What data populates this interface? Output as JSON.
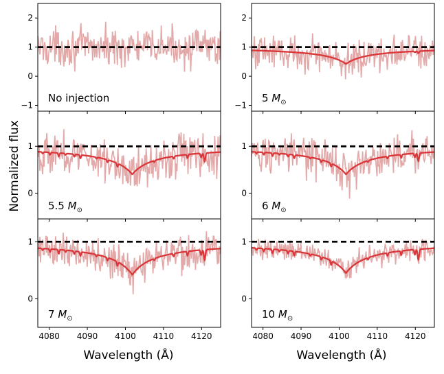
{
  "chart_data": {
    "type": "line",
    "ylabel": "Normalized flux",
    "xlabel": "Wavelength (Å)",
    "xlim": [
      4077,
      4125
    ],
    "xticks": [
      4080,
      4090,
      4100,
      4110,
      4120
    ],
    "reference_line": {
      "y": 1,
      "style": "dashed",
      "color": "#000000"
    },
    "colors": {
      "observed": "#e3a9a9",
      "model": "#d9373a",
      "reference": "#000000"
    },
    "model_profile": {
      "center": 4101.8,
      "line_width": 6.0
    },
    "panels": [
      {
        "id": "no-injection",
        "label": "No injection",
        "ylim": [
          -1.2,
          2.5
        ],
        "yticks": [
          -1,
          0,
          1,
          2
        ],
        "model": null,
        "noise_amplitude": 0.42
      },
      {
        "id": "5msun",
        "label": "5 M☉",
        "label_value": "5",
        "ylim": [
          -1.2,
          2.5
        ],
        "yticks": [
          -1,
          0,
          1,
          2
        ],
        "model": {
          "depth": 0.58,
          "narrow_lines": 0.15
        },
        "noise_amplitude": 0.4
      },
      {
        "id": "5.5msun",
        "label": "5.5 M☉",
        "label_value": "5.5",
        "ylim": [
          -0.55,
          1.75
        ],
        "yticks": [
          0,
          1
        ],
        "model": {
          "depth": 0.6,
          "narrow_lines": 0.4
        },
        "noise_amplitude": 0.3
      },
      {
        "id": "6msun",
        "label": "6 M☉",
        "label_value": "6",
        "ylim": [
          -0.55,
          1.75
        ],
        "yticks": [
          0,
          1
        ],
        "model": {
          "depth": 0.6,
          "narrow_lines": 0.38
        },
        "noise_amplitude": 0.28
      },
      {
        "id": "7msun",
        "label": "7 M☉",
        "label_value": "7",
        "ylim": [
          -0.5,
          1.4
        ],
        "yticks": [
          0,
          1
        ],
        "model": {
          "depth": 0.58,
          "narrow_lines": 0.4
        },
        "noise_amplitude": 0.22
      },
      {
        "id": "10msun",
        "label": "10 M☉",
        "label_value": "10",
        "ylim": [
          -0.5,
          1.4
        ],
        "yticks": [
          0,
          1
        ],
        "model": {
          "depth": 0.55,
          "narrow_lines": 0.4
        },
        "noise_amplitude": 0.12
      }
    ]
  }
}
